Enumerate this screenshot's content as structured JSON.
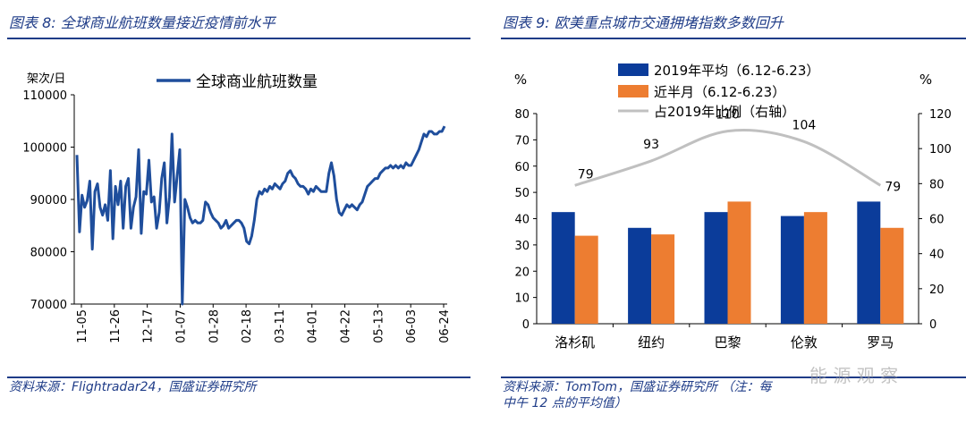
{
  "left": {
    "figure_label": "图表 8:",
    "figure_title": "全球商业航班数量接近疫情前水平",
    "source": "资料来源：Flightradar24，国盛证券研究所"
  },
  "right": {
    "figure_label": "图表 9:",
    "figure_title": "欧美重点城市交通拥堵指数多数回升",
    "source_line1": "资料来源：TomTom，国盛证券研究所 （注：每",
    "source_line2": "中午 12 点的平均值）"
  },
  "watermark": "能 源 观 察",
  "chart_data": [
    {
      "type": "line",
      "title": "全球商业航班数量接近疫情前水平",
      "ylabel": "架次/日",
      "ylim": [
        70000,
        110000
      ],
      "yticks": [
        70000,
        80000,
        90000,
        100000,
        110000
      ],
      "x_tick_labels": [
        "11-05",
        "11-26",
        "12-17",
        "01-07",
        "01-28",
        "02-18",
        "03-11",
        "04-01",
        "04-22",
        "05-13",
        "06-03",
        "06-24"
      ],
      "series": [
        {
          "name": "全球商业航班数量",
          "color": "#1f4e9c",
          "values": [
            98500,
            83800,
            90800,
            88500,
            89800,
            93500,
            80500,
            91500,
            93000,
            88500,
            87000,
            89000,
            86000,
            95500,
            82500,
            92500,
            89000,
            93500,
            84500,
            92500,
            94000,
            84500,
            88500,
            90500,
            99500,
            83500,
            91500,
            91000,
            97500,
            89500,
            90500,
            84500,
            87500,
            94000,
            97000,
            85500,
            90500,
            102500,
            89500,
            94500,
            99500,
            70000,
            90000,
            88500,
            86500,
            85500,
            86000,
            85500,
            85500,
            86000,
            89500,
            89000,
            87500,
            86500,
            86000,
            85500,
            84500,
            85000,
            86000,
            84500,
            85000,
            85500,
            86000,
            86000,
            85500,
            84500,
            82000,
            81500,
            83000,
            86000,
            90000,
            91500,
            91000,
            92000,
            91500,
            92500,
            92000,
            93000,
            92500,
            92000,
            93000,
            93500,
            95000,
            95500,
            94500,
            94000,
            93000,
            92500,
            92500,
            92000,
            91000,
            92000,
            91500,
            92500,
            92000,
            91500,
            91500,
            91500,
            95000,
            97000,
            94500,
            90000,
            87500,
            87000,
            88000,
            89000,
            88500,
            89000,
            88500,
            88000,
            89000,
            89500,
            91000,
            92500,
            93000,
            93500,
            94000,
            94000,
            95000,
            95500,
            96000,
            96000,
            96500,
            96000,
            96500,
            96000,
            96500,
            96000,
            97000,
            96500,
            96500,
            97500,
            98500,
            99500,
            101000,
            102500,
            102000,
            103000,
            103000,
            102500,
            102500,
            103000,
            103000,
            104000
          ]
        }
      ]
    },
    {
      "type": "bar",
      "title": "欧美重点城市交通拥堵指数多数回升",
      "categories": [
        "洛杉矶",
        "纽约",
        "巴黎",
        "伦敦",
        "罗马"
      ],
      "ylabel_left": "%",
      "ylabel_right": "%",
      "ylim_left": [
        0,
        80
      ],
      "ylim_right": [
        0,
        120
      ],
      "yticks_left": [
        0,
        10,
        20,
        30,
        40,
        50,
        60,
        70,
        80
      ],
      "yticks_right": [
        0,
        20,
        40,
        60,
        80,
        100,
        120
      ],
      "series": [
        {
          "name": "2019年平均（6.12-6.23）",
          "type": "bar",
          "color": "#0b3c9a",
          "axis": "left",
          "values": [
            42.5,
            36.5,
            42.5,
            41,
            46.5
          ]
        },
        {
          "name": "近半月（6.12-6.23）",
          "type": "bar",
          "color": "#ed7d31",
          "axis": "left",
          "values": [
            33.5,
            34,
            46.5,
            42.5,
            36.5
          ]
        },
        {
          "name": "占2019年比例（右轴）",
          "type": "line",
          "color": "#c0c0c0",
          "axis": "right",
          "values": [
            79,
            93,
            110,
            104,
            79
          ],
          "data_labels": [
            "79",
            "93",
            "110",
            "104",
            "79"
          ]
        }
      ]
    }
  ]
}
